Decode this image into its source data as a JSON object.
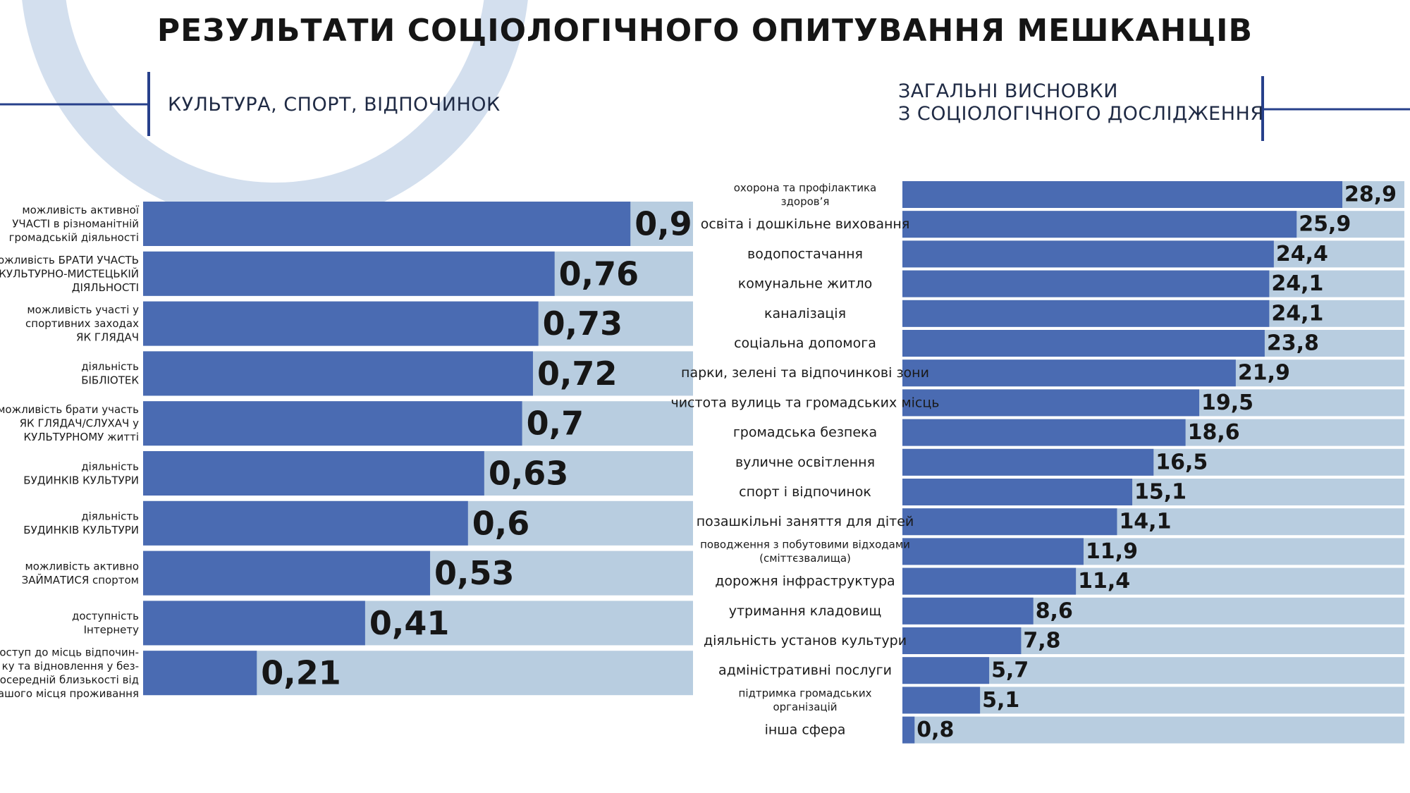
{
  "page": {
    "title": "РЕЗУЛЬТАТИ СОЦІОЛОГІЧНОГО ОПИТУВАННЯ МЕШКАНЦІВ"
  },
  "colors": {
    "bar": "#4a6bb2",
    "track": "#b8cde0",
    "accent_line": "#27408b",
    "decor_ring": "#d3dfee"
  },
  "chart_data": [
    {
      "type": "bar",
      "orientation": "horizontal",
      "title": "КУЛЬТУРА, СПОРТ, ВІДПОЧИНОК",
      "categories": [
        "можливість активної УЧАСТІ в різноманітній громадській діяльності",
        "можливість БРАТИ УЧАСТЬ У КУЛЬТУРНО-МИСТЕЦЬКІЙ ДІЯЛЬНОСТІ",
        "можливість участі у спортивних заходах ЯК ГЛЯДАЧ",
        "діяльність БІБЛІОТЕК",
        "можливість брати участь ЯК ГЛЯДАЧ/СЛУХАЧ у КУЛЬТУРНОМУ житті",
        "діяльність БУДИНКІВ КУЛЬТУРИ",
        "діяльність БУДИНКІВ КУЛЬТУРИ",
        "можливість активно ЗАЙМАТИСЯ спортом",
        "доступність Інтернету",
        "доступ до місць відпочинку та відновлення у безпосередній близькості від вашого місця проживання"
      ],
      "label_lines": [
        [
          "можливість активної",
          "УЧАСТІ в різноманітній",
          "громадській діяльності"
        ],
        [
          "можливість БРАТИ УЧАСТЬ",
          "У КУЛЬТУРНО-МИСТЕЦЬКІЙ",
          "ДІЯЛЬНОСТІ"
        ],
        [
          "можливість участі у",
          "спортивних заходах",
          "ЯК ГЛЯДАЧ"
        ],
        [
          "діяльність",
          "БІБЛІОТЕК"
        ],
        [
          "можливість брати участь",
          "ЯК ГЛЯДАЧ/СЛУХАЧ у",
          "КУЛЬТУРНОМУ житті"
        ],
        [
          "діяльність",
          "БУДИНКІВ КУЛЬТУРИ"
        ],
        [
          "діяльність",
          "БУДИНКІВ КУЛЬТУРИ"
        ],
        [
          "можливість активно",
          "ЗАЙМАТИСЯ спортом"
        ],
        [
          "доступність",
          "Інтернету"
        ],
        [
          "доступ до місць відпочин-",
          "ку та відновлення у без-",
          "посередній близькості від",
          "вашого місця проживання"
        ]
      ],
      "values": [
        0.9,
        0.76,
        0.73,
        0.72,
        0.7,
        0.63,
        0.6,
        0.53,
        0.41,
        0.21
      ],
      "value_labels": [
        "0,9",
        "0,76",
        "0,73",
        "0,72",
        "0,7",
        "0,63",
        "0,6",
        "0,53",
        "0,41",
        "0,21"
      ],
      "xlim": [
        0,
        1
      ],
      "grid": false,
      "legend": "none"
    },
    {
      "type": "bar",
      "orientation": "horizontal",
      "title": "ЗАГАЛЬНІ ВИСНОВКИ З СОЦІОЛОГІЧНОГО ДОСЛІДЖЕННЯ",
      "title_lines": [
        "ЗАГАЛЬНІ ВИСНОВКИ",
        "З СОЦІОЛОГІЧНОГО ДОСЛІДЖЕННЯ"
      ],
      "categories": [
        "охорона та профілактика здоров’я",
        "освіта і дошкільне виховання",
        "водопостачання",
        "комунальне житло",
        "каналізація",
        "соціальна допомога",
        "парки, зелені та відпочинкові зони",
        "чистота вулиць та громадських місць",
        "громадська безпека",
        "вуличне освітлення",
        "спорт і відпочинок",
        "позашкільні заняття для дітей",
        "поводження з побутовими відходами (сміттєзвалища)",
        "дорожня інфраструктура",
        "утримання кладовищ",
        "діяльність установ культури",
        "адміністративні послуги",
        "підтримка громадських організацій",
        "інша сфера"
      ],
      "label_lines": [
        [
          "охорона та профілактика",
          "здоров’я"
        ],
        [
          "освіта і дошкільне виховання"
        ],
        [
          "водопостачання"
        ],
        [
          "комунальне житло"
        ],
        [
          "каналізація"
        ],
        [
          "соціальна допомога"
        ],
        [
          "парки, зелені та відпочинкові зони"
        ],
        [
          "чистота вулиць та громадських місць"
        ],
        [
          "громадська безпека"
        ],
        [
          "вуличне освітлення"
        ],
        [
          "спорт і відпочинок"
        ],
        [
          "позашкільні заняття для дітей"
        ],
        [
          "поводження з побутовими відходами",
          "(сміттєзвалища)"
        ],
        [
          "дорожня інфраструктура"
        ],
        [
          "утримання кладовищ"
        ],
        [
          "діяльність установ культури"
        ],
        [
          "адміністративні послуги"
        ],
        [
          "підтримка громадських",
          "організацій"
        ],
        [
          "інша сфера"
        ]
      ],
      "values": [
        28.9,
        25.9,
        24.4,
        24.1,
        24.1,
        23.8,
        21.9,
        19.5,
        18.6,
        16.5,
        15.1,
        14.1,
        11.9,
        11.4,
        8.6,
        7.8,
        5.7,
        5.1,
        0.8
      ],
      "value_labels": [
        "28,9",
        "25,9",
        "24,4",
        "24,1",
        "24,1",
        "23,8",
        "21,9",
        "19,5",
        "18,6",
        "16,5",
        "15,1",
        "14,1",
        "11,9",
        "11,4",
        "8,6",
        "7,8",
        "5,7",
        "5,1",
        "0,8"
      ],
      "xlim": [
        0,
        28.9
      ],
      "grid": false,
      "legend": "none"
    }
  ]
}
